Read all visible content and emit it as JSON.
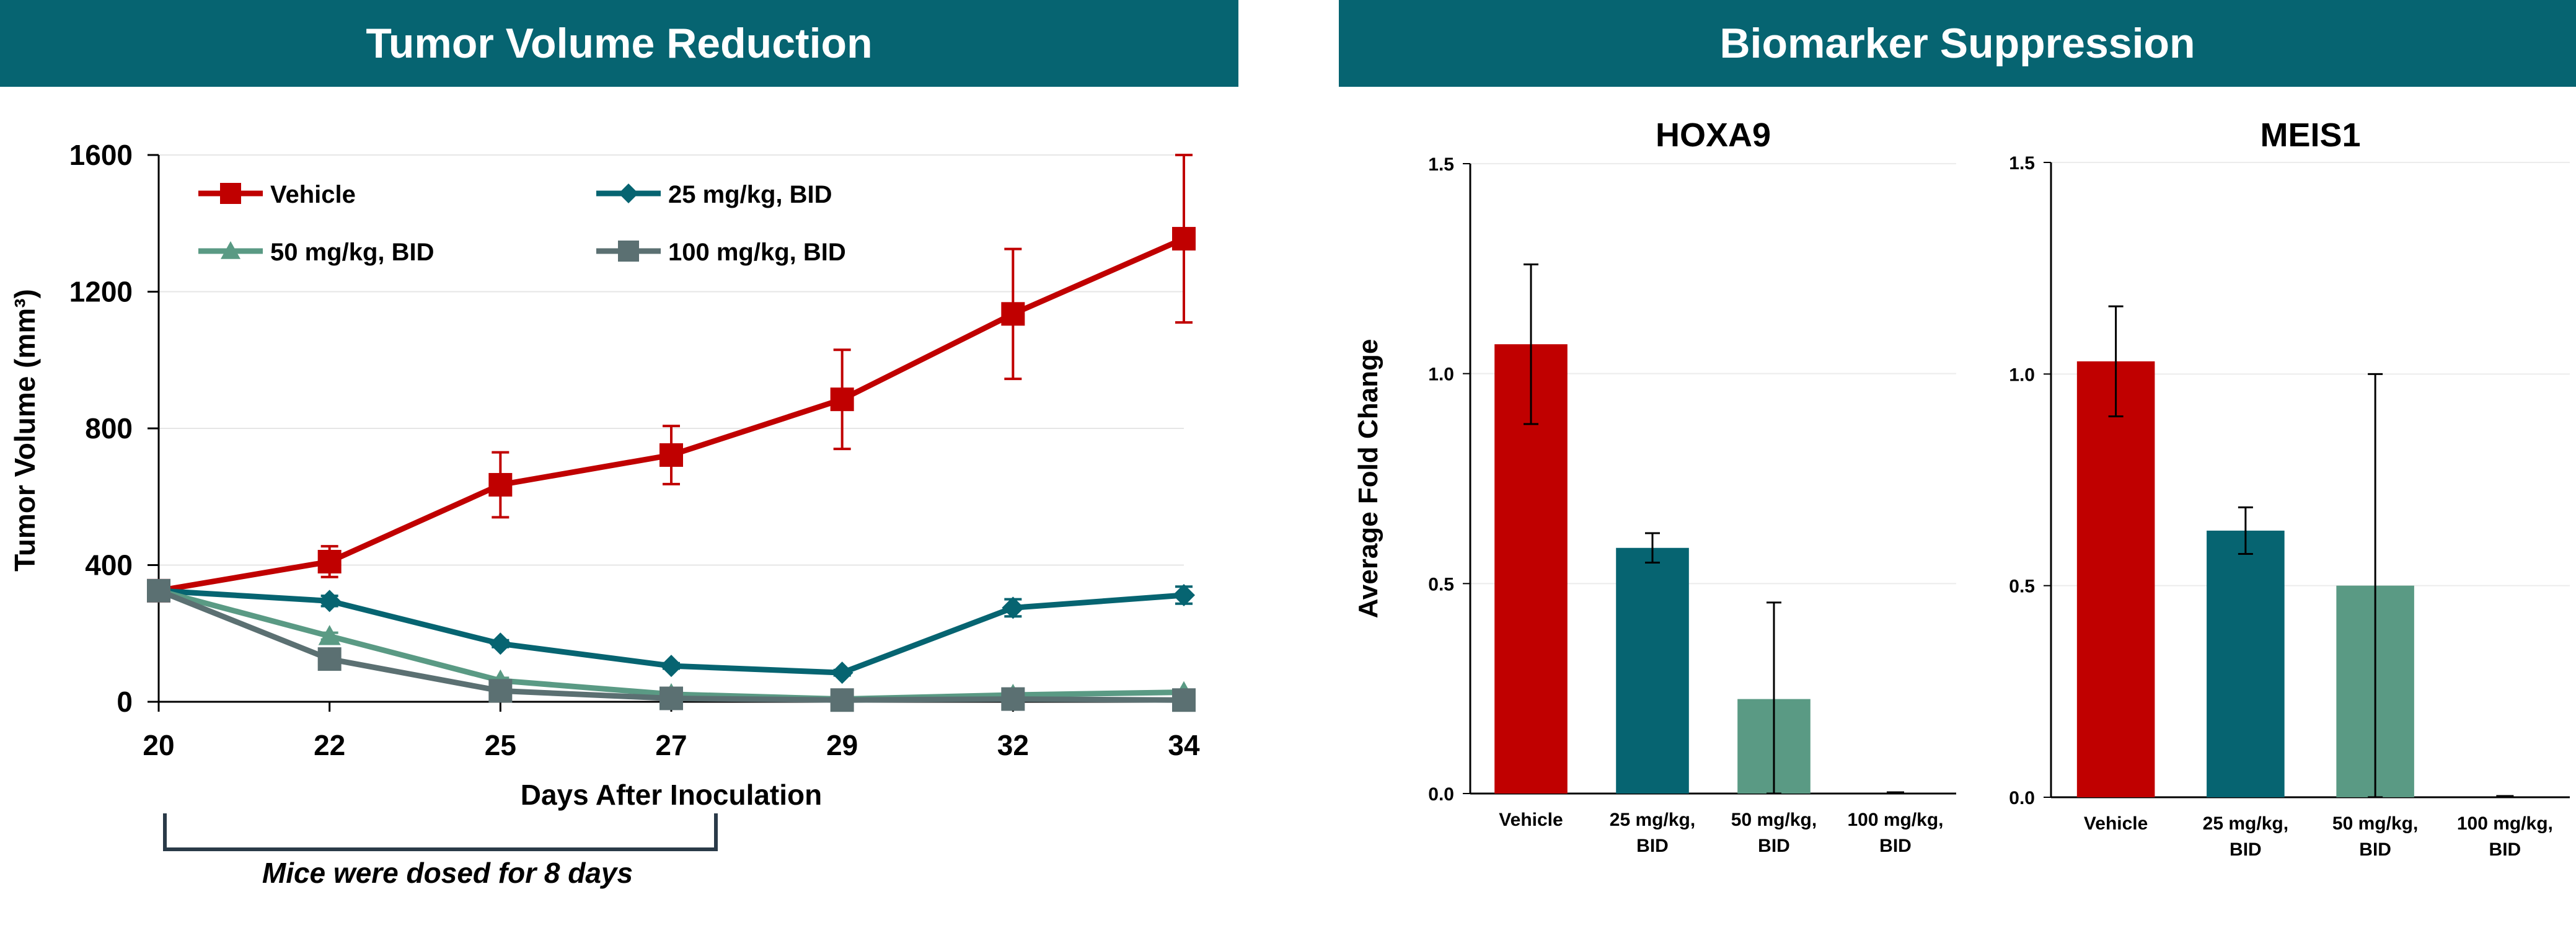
{
  "panels": {
    "left_title": "Tumor Volume Reduction",
    "right_title": "Biomarker Suppression"
  },
  "colors": {
    "vehicle": "#C00000",
    "dose25": "#066471",
    "dose50": "#5A9A84",
    "dose100": "#5B7072",
    "banner": "#066471"
  },
  "annotation": "Mice were dosed for 8 days",
  "chart_data": [
    {
      "type": "line",
      "title": "Tumor Volume Reduction",
      "xlabel": "Days After Inoculation",
      "ylabel": "Tumor Volume (mm³)",
      "categories": [
        "20",
        "22",
        "25",
        "27",
        "29",
        "32",
        "34"
      ],
      "ylim": [
        0,
        1600
      ],
      "yticks": [
        "0",
        "400",
        "800",
        "1200",
        "1600"
      ],
      "legend_position": "top",
      "series": [
        {
          "name": "Vehicle",
          "color_key": "vehicle",
          "marker": "square",
          "values": [
            325,
            410,
            635,
            722,
            885,
            1135,
            1355
          ],
          "errors": [
            30,
            45,
            95,
            85,
            145,
            190,
            245
          ]
        },
        {
          "name": "25 mg/kg, BID",
          "color_key": "dose25",
          "marker": "diamond",
          "values": [
            325,
            295,
            170,
            105,
            85,
            275,
            312
          ],
          "errors": [
            15,
            15,
            10,
            8,
            8,
            25,
            25
          ]
        },
        {
          "name": "50 mg/kg, BID",
          "color_key": "dose50",
          "marker": "triangle",
          "values": [
            325,
            192,
            62,
            22,
            8,
            20,
            28
          ],
          "errors": [
            10,
            10,
            8,
            5,
            4,
            5,
            5
          ]
        },
        {
          "name": "100 mg/kg, BID",
          "color_key": "dose100",
          "marker": "square",
          "values": [
            325,
            125,
            32,
            10,
            5,
            8,
            5
          ],
          "errors": [
            8,
            8,
            5,
            3,
            2,
            2,
            2
          ]
        }
      ]
    },
    {
      "type": "bar",
      "title": "HOXA9",
      "ylabel": "Average Fold Change",
      "categories": [
        "Vehicle",
        "25 mg/kg, BID",
        "50 mg/kg, BID",
        "100 mg/kg, BID"
      ],
      "category_lines": [
        [
          "Vehicle"
        ],
        [
          "25 mg/kg,",
          "BID"
        ],
        [
          "50 mg/kg,",
          "BID"
        ],
        [
          "100 mg/kg,",
          "BID"
        ]
      ],
      "values": [
        1.07,
        0.585,
        0.225,
        0.0
      ],
      "errors": [
        0.19,
        0.035,
        0.23,
        0.0
      ],
      "ylim": [
        0,
        1.5
      ],
      "yticks": [
        "0.0",
        "0.5",
        "1.0",
        "1.5"
      ]
    },
    {
      "type": "bar",
      "title": "MEIS1",
      "ylabel": "",
      "categories": [
        "Vehicle",
        "25 mg/kg, BID",
        "50 mg/kg, BID",
        "100 mg/kg, BID"
      ],
      "category_lines": [
        [
          "Vehicle"
        ],
        [
          "25 mg/kg,",
          "BID"
        ],
        [
          "50 mg/kg,",
          "BID"
        ],
        [
          "100 mg/kg,",
          "BID"
        ]
      ],
      "values": [
        1.03,
        0.63,
        0.5,
        0.0
      ],
      "errors": [
        0.13,
        0.055,
        0.5,
        0.0
      ],
      "ylim": [
        0,
        1.5
      ],
      "yticks": [
        "0.0",
        "0.5",
        "1.0",
        "1.5"
      ]
    }
  ]
}
